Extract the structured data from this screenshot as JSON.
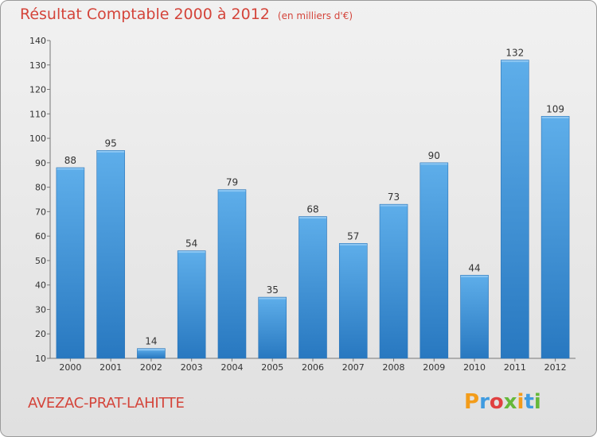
{
  "header": {
    "title": "Résultat Comptable 2000 à 2012",
    "subtitle": "(en milliers d'€)"
  },
  "footer": {
    "commune": "AVEZAC-PRAT-LAHITTE",
    "logo": "Proxiti"
  },
  "colors": {
    "title": "#d4443a",
    "bar_light": "#5aa9e8",
    "bar_dark": "#2a7ec6"
  },
  "chart_data": {
    "type": "bar",
    "title": "Résultat Comptable 2000 à 2012",
    "subtitle": "(en milliers d'€)",
    "xlabel": "",
    "ylabel": "",
    "categories": [
      "2000",
      "2001",
      "2002",
      "2003",
      "2004",
      "2005",
      "2006",
      "2007",
      "2008",
      "2009",
      "2010",
      "2011",
      "2012"
    ],
    "values": [
      88,
      95,
      14,
      54,
      79,
      35,
      68,
      57,
      73,
      90,
      44,
      132,
      109
    ],
    "ylim": [
      10,
      140
    ],
    "yticks": [
      10,
      20,
      30,
      40,
      50,
      60,
      70,
      80,
      90,
      100,
      110,
      120,
      130,
      140
    ],
    "grid": false,
    "legend": "none"
  }
}
